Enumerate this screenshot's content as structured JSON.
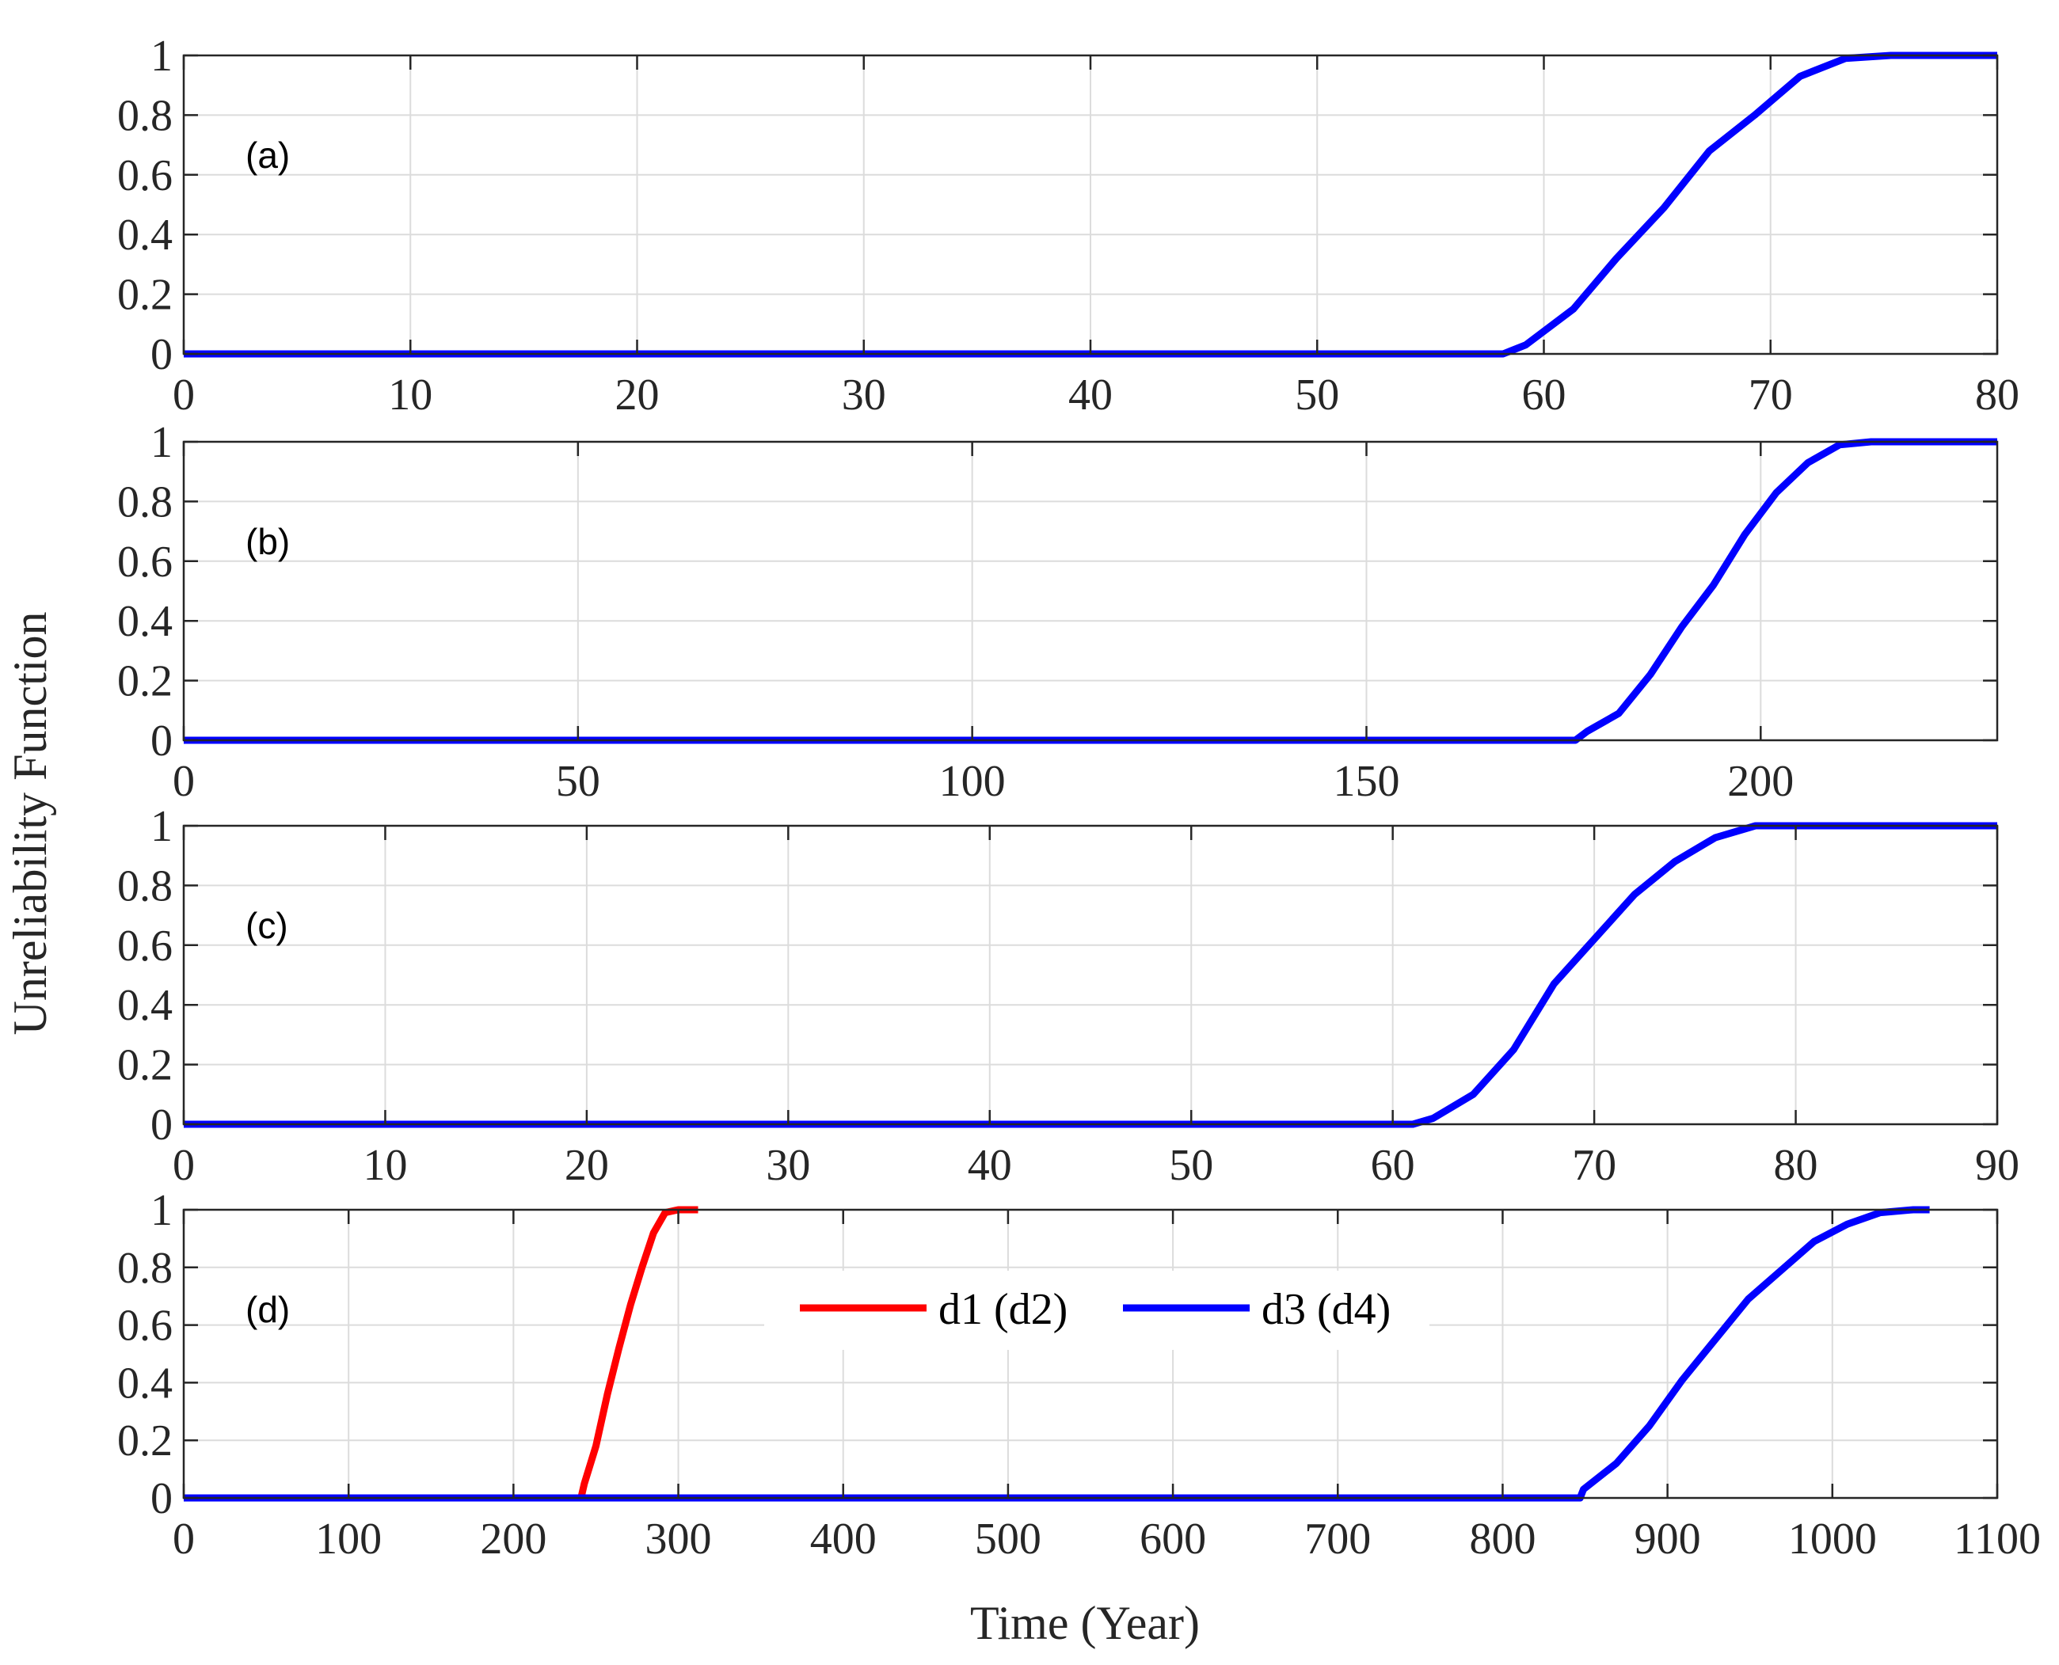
{
  "figure": {
    "ylabel": "Unreliability Function",
    "xlabel": "Time (Year)"
  },
  "chart_data": [
    {
      "type": "line",
      "panel_label": "(a)",
      "xlim": [
        0,
        80
      ],
      "ylim": [
        0,
        1
      ],
      "xticks": [
        0,
        10,
        20,
        30,
        40,
        50,
        60,
        70,
        80
      ],
      "yticks": [
        0,
        0.2,
        0.4,
        0.6,
        0.8,
        1
      ],
      "ytick_labels": [
        "0",
        "0.2",
        "0.4",
        "0.6",
        "0.8",
        "1"
      ],
      "grid": true,
      "series": [
        {
          "name": "",
          "color": "#0000ff",
          "x": [
            0,
            58.2,
            59.2,
            61.3,
            63.2,
            65.3,
            67.3,
            69.3,
            71.3,
            73.3,
            75.3,
            80
          ],
          "y": [
            0,
            0,
            0.03,
            0.15,
            0.32,
            0.49,
            0.68,
            0.8,
            0.93,
            0.99,
            1,
            1
          ]
        }
      ]
    },
    {
      "type": "line",
      "panel_label": "(b)",
      "xlim": [
        0,
        230
      ],
      "ylim": [
        0,
        1
      ],
      "xticks": [
        0,
        50,
        100,
        150,
        200
      ],
      "yticks": [
        0,
        0.2,
        0.4,
        0.6,
        0.8,
        1
      ],
      "ytick_labels": [
        "0",
        "0.2",
        "0.4",
        "0.6",
        "0.8",
        "1"
      ],
      "grid": true,
      "series": [
        {
          "name": "",
          "color": "#0000ff",
          "x": [
            0,
            176.5,
            178,
            182,
            186,
            190,
            194,
            198,
            202,
            206,
            210,
            214,
            218,
            222,
            230
          ],
          "y": [
            0,
            0,
            0.03,
            0.09,
            0.22,
            0.38,
            0.52,
            0.69,
            0.83,
            0.93,
            0.99,
            1,
            1,
            1,
            1
          ]
        }
      ]
    },
    {
      "type": "line",
      "panel_label": "(c)",
      "xlim": [
        0,
        90
      ],
      "ylim": [
        0,
        1
      ],
      "xticks": [
        0,
        10,
        20,
        30,
        40,
        50,
        60,
        70,
        80,
        90
      ],
      "yticks": [
        0,
        0.2,
        0.4,
        0.6,
        0.8,
        1
      ],
      "ytick_labels": [
        "0",
        "0.2",
        "0.4",
        "0.6",
        "0.8",
        "1"
      ],
      "grid": true,
      "series": [
        {
          "name": "",
          "color": "#0000ff",
          "x": [
            0,
            61,
            62,
            64,
            66,
            68,
            70,
            72,
            74,
            76,
            78,
            80,
            90
          ],
          "y": [
            0,
            0,
            0.02,
            0.1,
            0.25,
            0.47,
            0.62,
            0.77,
            0.88,
            0.96,
            1,
            1,
            1
          ]
        }
      ]
    },
    {
      "type": "line",
      "panel_label": "(d)",
      "xlim": [
        0,
        1100
      ],
      "ylim": [
        0,
        1
      ],
      "xticks": [
        0,
        100,
        200,
        300,
        400,
        500,
        600,
        700,
        800,
        900,
        1000,
        1100
      ],
      "yticks": [
        0,
        0.2,
        0.4,
        0.6,
        0.8,
        1
      ],
      "ytick_labels": [
        "0",
        "0.2",
        "0.4",
        "0.6",
        "0.8",
        "1"
      ],
      "grid": true,
      "legend": "top-center",
      "series": [
        {
          "name": "d1 (d2)",
          "color": "#ff0000",
          "x": [
            0,
            241,
            243,
            250,
            257,
            264,
            271,
            278,
            285,
            292,
            300,
            312
          ],
          "y": [
            0,
            0,
            0.05,
            0.18,
            0.36,
            0.52,
            0.67,
            0.8,
            0.92,
            0.99,
            1,
            1
          ]
        },
        {
          "name": "d3 (d4)",
          "color": "#0000ff",
          "x": [
            0,
            847,
            849,
            869,
            889,
            909,
            929,
            949,
            969,
            989,
            1009,
            1029,
            1049,
            1059
          ],
          "y": [
            0,
            0,
            0.03,
            0.12,
            0.25,
            0.41,
            0.55,
            0.69,
            0.79,
            0.89,
            0.95,
            0.99,
            1,
            1
          ]
        }
      ]
    }
  ]
}
